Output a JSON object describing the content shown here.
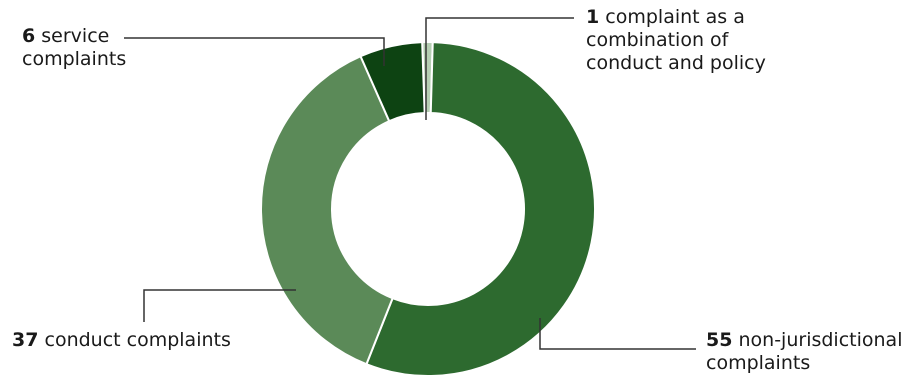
{
  "chart_data": {
    "type": "pie",
    "donut": true,
    "slices": [
      {
        "value": 1,
        "label": "complaint as a combination of conduct and policy",
        "lines": [
          "complaint as a",
          "combination of",
          "conduct and policy"
        ],
        "color": "#b6cfb3"
      },
      {
        "value": 55,
        "label": "non-jurisdictional complaints",
        "lines": [
          "non-jurisdictional",
          "complaints"
        ],
        "color": "#2d6a2f"
      },
      {
        "value": 37,
        "label": "conduct complaints",
        "lines": [
          "conduct complaints"
        ],
        "color": "#5b8a58"
      },
      {
        "value": 6,
        "label": "service complaints",
        "lines": [
          "service",
          "complaints"
        ],
        "color": "#0d4312"
      }
    ]
  }
}
